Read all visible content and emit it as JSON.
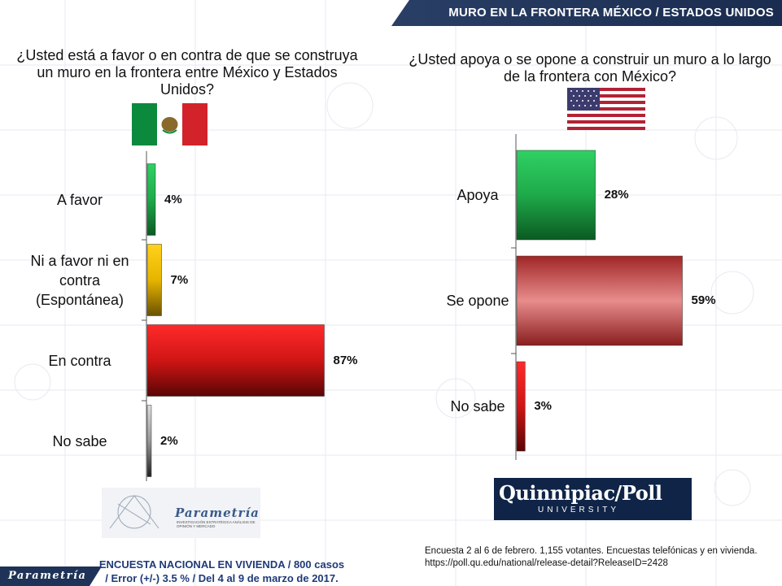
{
  "header": {
    "title": "MURO EN LA FRONTERA MÉXICO / ESTADOS UNIDOS"
  },
  "colors": {
    "header_bg": "#1f3358",
    "green": "#1faa4a",
    "yellow": "#e6b400",
    "red": "#d01515",
    "rose": "#c84a4a",
    "gray": "#888888"
  },
  "chart_data": [
    {
      "type": "bar",
      "orientation": "horizontal",
      "title": "¿Usted está a favor o en contra de que se construya un muro en la frontera entre México y Estados Unidos?",
      "flag": "mexico-flag",
      "categories": [
        "A favor",
        "Ni a favor ni en contra (Espontánea)",
        "En contra",
        "No sabe"
      ],
      "category_lines": [
        [
          "A favor"
        ],
        [
          "Ni a favor ni en",
          "contra",
          "(Espontánea)"
        ],
        [
          "En contra"
        ],
        [
          "No sabe"
        ]
      ],
      "values": [
        4,
        7,
        87,
        2
      ],
      "value_labels": [
        "4%",
        "7%",
        "87%",
        "2%"
      ],
      "bar_colors": [
        "green",
        "yellow",
        "red",
        "gray"
      ],
      "xlim": [
        0,
        100
      ]
    },
    {
      "type": "bar",
      "orientation": "horizontal",
      "title": "¿Usted apoya o se opone a construir un muro a lo largo de la frontera con México?",
      "flag": "usa-flag",
      "categories": [
        "Apoya",
        "Se opone",
        "No sabe"
      ],
      "category_lines": [
        [
          "Apoya"
        ],
        [
          "Se opone"
        ],
        [
          "No sabe"
        ]
      ],
      "values": [
        28,
        59,
        3
      ],
      "value_labels": [
        "28%",
        "59%",
        "3%"
      ],
      "bar_colors": [
        "green",
        "rose",
        "red"
      ],
      "xlim": [
        0,
        100
      ]
    }
  ],
  "logos": {
    "parametria_name": "Parametría",
    "parametria_sub": "INVESTIGACIÓN ESTRATÉGICA ANÁLISIS DE OPINIÓN Y MERCADO",
    "footer_brand": "Parametría",
    "quinnipiac_name": "Quinnipiac/Poll",
    "quinnipiac_sub": "UNIVERSITY"
  },
  "notes": {
    "survey": "ENCUESTA NACIONAL EN VIVIENDA / 800 casos / Error (+/-) 3.5 % / Del 4 al 9 de marzo de 2017.",
    "source": "Encuesta 2 al 6 de febrero. 1,155 votantes. Encuestas telefónicas y en vivienda. https://poll.qu.edu/national/release-detail?ReleaseID=2428"
  }
}
